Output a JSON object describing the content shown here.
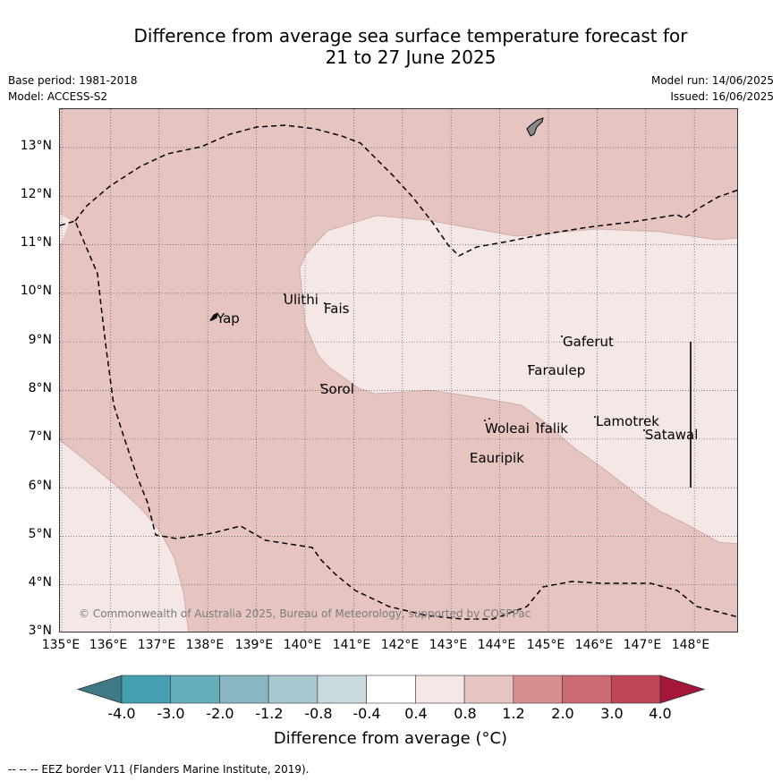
{
  "title_line1": "Difference from average sea surface temperature forecast for",
  "title_line2": "21 to 27 June 2025",
  "meta": {
    "base_period": "Base period: 1981-2018",
    "model": "Model: ACCESS-S2",
    "model_run": "Model run: 14/06/2025",
    "issued": "Issued: 16/06/2025"
  },
  "map": {
    "lat_labels": [
      "13°N",
      "12°N",
      "11°N",
      "10°N",
      "9°N",
      "8°N",
      "7°N",
      "6°N",
      "5°N",
      "4°N",
      "3°N"
    ],
    "lon_labels": [
      "135°E",
      "136°E",
      "137°E",
      "138°E",
      "139°E",
      "140°E",
      "141°E",
      "142°E",
      "143°E",
      "144°E",
      "145°E",
      "146°E",
      "147°E",
      "148°E"
    ],
    "places": [
      "Yap",
      "Ulithi",
      "Fais",
      "Gaferut",
      "Faraulep",
      "Sorol",
      "Woleai",
      "Ifalik",
      "Lamotrek",
      "Satawal",
      "Eauripik"
    ],
    "copyright": "© Commonwealth of Australia 2025, Bureau of Meteorology, supported by COSPPac",
    "colors": {
      "fill_0_8_to_1_2": "#e6c5c1",
      "fill_0_4_to_0_8": "#f4e7e6",
      "land": "#8a8a8a",
      "eez_line": "#000000",
      "grid": "#555555"
    }
  },
  "colorbar": {
    "labels": [
      "-4.0",
      "-3.0",
      "-2.0",
      "-1.2",
      "-0.8",
      "-0.4",
      "0.4",
      "0.8",
      "1.2",
      "2.0",
      "3.0",
      "4.0"
    ],
    "colors": [
      "#3e7a86",
      "#44a0b1",
      "#66adbb",
      "#88b6c2",
      "#a9c7cf",
      "#c8dadd",
      "#ffffff",
      "#f4e7e6",
      "#e6c5c1",
      "#d7908f",
      "#cc6b72",
      "#bf4655",
      "#a5163b"
    ],
    "title": "Difference from average (°C)"
  },
  "footnote": "--  --  -- EEZ border V11 (Flanders Marine Institute, 2019)."
}
